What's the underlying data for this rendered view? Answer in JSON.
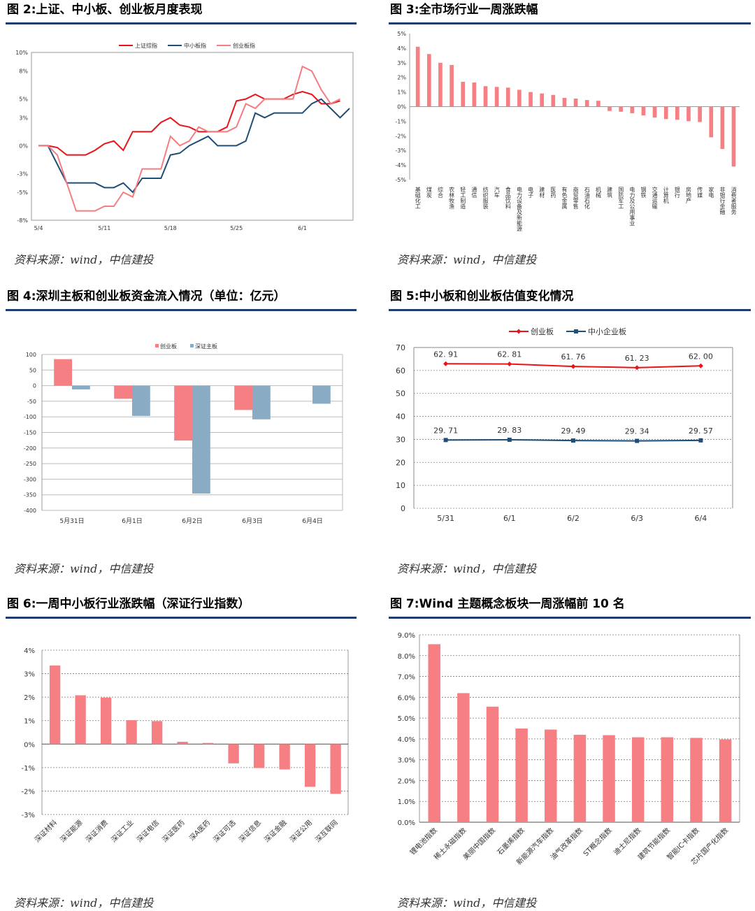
{
  "panels": {
    "p2": {
      "title": "图 2:上证、中小板、创业板月度表现",
      "source": "资料来源：wind，中信建投"
    },
    "p3": {
      "title": "图 3:全市场行业一周涨跌幅",
      "source": "资料来源：wind，中信建投"
    },
    "p4": {
      "title": "图 4:深圳主板和创业板资金流入情况（单位：亿元）",
      "source": "资料来源：wind，中信建投"
    },
    "p5": {
      "title": "图 5:中小板和创业板估值变化情况",
      "source": "资料来源：wind，中信建投"
    },
    "p6": {
      "title": "图 6:一周中小板行业涨跌幅（深证行业指数）",
      "source": "资料来源：wind，中信建投"
    },
    "p7": {
      "title": "图 7:Wind 主题概念板块一周涨幅前 10 名",
      "source": "资料来源：wind，中信建投"
    }
  },
  "colors": {
    "red": "#E8141A",
    "navy": "#1F4E79",
    "pink": "#F47D82",
    "bar": "#F57F83",
    "blue": "#8AABC4",
    "dark": "#1F3C6E"
  },
  "chart_data": [
    {
      "id": "fig2",
      "type": "line",
      "title": "",
      "x_ticks": [
        "5/4",
        "5/11",
        "5/18",
        "5/25",
        "6/1"
      ],
      "ylim": [
        -8,
        10
      ],
      "y_ticks": [
        -8,
        -5,
        -3,
        0,
        3,
        5,
        8,
        10
      ],
      "y_tick_labels": [
        "-8%",
        "-5%",
        "-3%",
        "0%",
        "3%",
        "5%",
        "8%",
        "10%"
      ],
      "legend": "top-center",
      "series": [
        {
          "name": "上证综指",
          "color": "#E8141A",
          "values": [
            0,
            0,
            -0.2,
            -1,
            -1,
            -1,
            -0.5,
            0.2,
            0.5,
            -0.5,
            1.5,
            1.5,
            1.5,
            2.5,
            3,
            2.2,
            2,
            1.5,
            1.5,
            1.5,
            2,
            4.8,
            5,
            5.5,
            5,
            5,
            5,
            5.5,
            5.8,
            5.5,
            4.5,
            4.5,
            4.8
          ]
        },
        {
          "name": "中小板指",
          "color": "#1F4E79",
          "values": [
            0,
            0,
            -2,
            -4,
            -4,
            -4,
            -4,
            -4.5,
            -4.5,
            -4,
            -5,
            -3.5,
            -3.5,
            -3.5,
            -1,
            -0.8,
            0,
            0.5,
            1,
            0,
            0,
            0,
            0.5,
            3.5,
            3,
            3.5,
            3.5,
            3.5,
            3.5,
            4.5,
            5,
            4,
            3,
            4
          ]
        },
        {
          "name": "创业板指",
          "color": "#F47D82",
          "values": [
            0,
            0,
            -1,
            -4,
            -7,
            -7,
            -7,
            -6.5,
            -6.5,
            -5,
            -5.5,
            -2.5,
            -2.5,
            -2.5,
            1,
            0,
            0.5,
            2,
            1.5,
            1.5,
            1.5,
            2,
            4.5,
            4,
            5,
            5,
            5,
            5,
            8.5,
            8,
            6,
            4.5,
            5
          ]
        }
      ]
    },
    {
      "id": "fig3",
      "type": "bar",
      "title": "",
      "ylim": [
        -5,
        5
      ],
      "y_tick_labels": [
        "-5%",
        "-4%",
        "-3%",
        "-2%",
        "-1%",
        "0%",
        "1%",
        "2%",
        "3%",
        "4%",
        "5%"
      ],
      "categories": [
        "基础化工",
        "煤炭",
        "综合",
        "农林牧渔",
        "轻工制造",
        "通信",
        "纺织服装",
        "汽车",
        "食品饮料",
        "电力设备及新能源",
        "电子",
        "建材",
        "医药",
        "有色金属",
        "商贸零售",
        "石油石化",
        "机械",
        "建筑",
        "国防军工",
        "电力及公用事业",
        "钢铁",
        "交通运输",
        "计算机",
        "银行",
        "房地产",
        "传媒",
        "家电",
        "非银行金融",
        "消费者服务"
      ],
      "values": [
        4.1,
        3.6,
        3.0,
        2.85,
        1.7,
        1.65,
        1.4,
        1.35,
        1.3,
        1.15,
        1.0,
        0.9,
        0.8,
        0.6,
        0.55,
        0.45,
        0.4,
        -0.3,
        -0.35,
        -0.45,
        -0.6,
        -0.75,
        -0.85,
        -0.9,
        -1.0,
        -1.05,
        -2.1,
        -2.9,
        -4.1
      ]
    },
    {
      "id": "fig4",
      "type": "bar",
      "title": "",
      "ylim": [
        -400,
        100
      ],
      "y_tick_labels": [
        "-400",
        "-350",
        "-300",
        "-250",
        "-200",
        "-150",
        "-100",
        "-50",
        "0",
        "50",
        "100"
      ],
      "categories": [
        "5月31日",
        "6月1日",
        "6月2日",
        "6月3日",
        "6月4日"
      ],
      "legend": "top-center",
      "series": [
        {
          "name": "创业板",
          "color": "#F57F83",
          "values": [
            85,
            -42,
            -176,
            -78,
            null
          ]
        },
        {
          "name": "深证主板",
          "color": "#8AABC4",
          "values": [
            -12,
            -97,
            -346,
            -108,
            -58
          ]
        }
      ]
    },
    {
      "id": "fig5",
      "type": "line",
      "title": "",
      "ylim": [
        0,
        70
      ],
      "y_tick_labels": [
        "0",
        "10",
        "20",
        "30",
        "40",
        "50",
        "60",
        "70"
      ],
      "categories": [
        "5/31",
        "6/1",
        "6/2",
        "6/3",
        "6/4"
      ],
      "legend": "top-center",
      "series": [
        {
          "name": "创业板",
          "color": "#E8141A",
          "values": [
            62.91,
            62.81,
            61.76,
            61.23,
            62.0
          ],
          "labels": [
            "62. 91",
            "62. 81",
            "61. 76",
            "61. 23",
            "62. 00"
          ]
        },
        {
          "name": "中小企业板",
          "color": "#1F4E79",
          "values": [
            29.71,
            29.83,
            29.49,
            29.34,
            29.57
          ],
          "labels": [
            "29. 71",
            "29. 83",
            "29. 49",
            "29. 34",
            "29. 57"
          ]
        }
      ]
    },
    {
      "id": "fig6",
      "type": "bar",
      "title": "",
      "ylim": [
        -3,
        4
      ],
      "y_tick_labels": [
        "-3%",
        "-2%",
        "-1%",
        "0%",
        "1%",
        "2%",
        "3%",
        "4%"
      ],
      "categories": [
        "深证材料",
        "深证能源",
        "深证消费",
        "深证工业",
        "深证电信",
        "深证医药",
        "深A医药",
        "深证可选",
        "深证信息",
        "深证金融",
        "深证公用",
        "深互联网"
      ],
      "values": [
        3.35,
        2.08,
        1.98,
        1.02,
        0.98,
        0.1,
        0.05,
        -0.82,
        -1.02,
        -1.08,
        -1.82,
        -2.12
      ]
    },
    {
      "id": "fig7",
      "type": "bar",
      "title": "",
      "ylim": [
        0,
        9
      ],
      "y_tick_labels": [
        "0.0%",
        "1.0%",
        "2.0%",
        "3.0%",
        "4.0%",
        "5.0%",
        "6.0%",
        "7.0%",
        "8.0%",
        "9.0%"
      ],
      "categories": [
        "锂电池指数",
        "稀土永磁指数",
        "美丽中国指数",
        "石墨烯指数",
        "新能源汽车指数",
        "油气改革指数",
        "ST概念指数",
        "迪士尼指数",
        "建筑节能指数",
        "智能IC卡指数",
        "芯片国产化指数"
      ],
      "values": [
        8.55,
        6.2,
        5.55,
        4.5,
        4.45,
        4.2,
        4.18,
        4.08,
        4.08,
        4.05,
        3.98
      ]
    }
  ]
}
